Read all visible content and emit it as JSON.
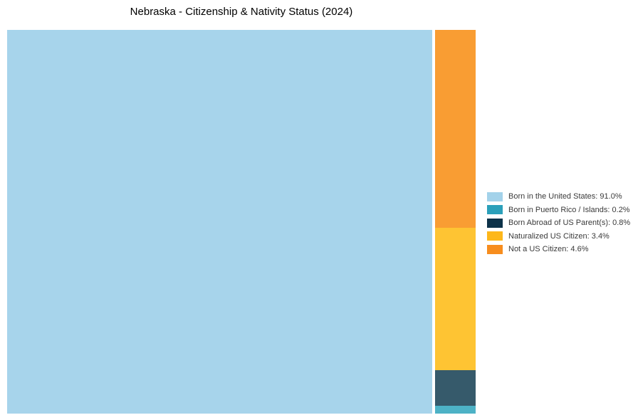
{
  "header": {
    "title": "Nebraska - Citizenship & Nativity Status (2024)"
  },
  "chart_data": {
    "type": "treemap",
    "title": "Nebraska - Citizenship & Nativity Status (2024)",
    "unit": "percent",
    "total": 100,
    "legend_position": "right-middle",
    "layout_hint": "single large cell at left (91%), remaining categories stacked in a narrow column on the right, largest at top",
    "items": [
      {
        "label": "Born in the United States",
        "value": 91.0,
        "cell_color": "#A7D4EB",
        "legend_color": "#A3D2EA"
      },
      {
        "label": "Born in Puerto Rico / Islands",
        "value": 0.2,
        "cell_color": "#4DB2C6",
        "legend_color": "#2BA0BA"
      },
      {
        "label": "Born Abroad of US Parent(s)",
        "value": 0.8,
        "cell_color": "#365A6B",
        "legend_color": "#0D3249"
      },
      {
        "label": "Naturalized US Citizen",
        "value": 3.4,
        "cell_color": "#FEC433",
        "legend_color": "#FDB71A"
      },
      {
        "label": "Not a US Citizen",
        "value": 4.6,
        "cell_color": "#F99D33",
        "legend_color": "#F78D1E"
      }
    ]
  },
  "legend": {
    "items": [
      {
        "label": "Born in the United States: 91.0%",
        "swatch_color": "#A3D2EA"
      },
      {
        "label": "Born in Puerto Rico / Islands: 0.2%",
        "swatch_color": "#2BA0BA"
      },
      {
        "label": "Born Abroad of US Parent(s): 0.8%",
        "swatch_color": "#0D3249"
      },
      {
        "label": "Naturalized US Citizen: 3.4%",
        "swatch_color": "#FDB71A"
      },
      {
        "label": "Not a US Citizen: 4.6%",
        "swatch_color": "#F78D1E"
      }
    ]
  }
}
